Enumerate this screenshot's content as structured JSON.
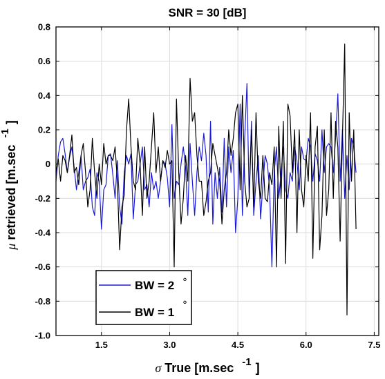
{
  "chart_data": {
    "type": "line",
    "title": "SNR = 30 [dB]",
    "xlabel": {
      "symbol": "σ",
      "text": " True [m.sec",
      "sup": "-1",
      "close": "]"
    },
    "ylabel": {
      "symbol": "μ",
      "text": " retrieved [m.sec",
      "sup": "-1",
      "close": "]"
    },
    "xlim": [
      0.5,
      7.6
    ],
    "ylim": [
      -1.0,
      0.8
    ],
    "xticks": [
      1.5,
      3.0,
      4.5,
      6.0,
      7.5
    ],
    "xtick_labels": [
      "1.5",
      "3.0",
      "4.5",
      "6.0",
      "7.5"
    ],
    "yticks": [
      -1.0,
      -0.8,
      -0.6,
      -0.4,
      -0.2,
      0,
      0.2,
      0.4,
      0.6,
      0.8
    ],
    "ytick_labels": [
      "-1.0",
      "-0.8",
      "-0.6",
      "-0.4",
      "-0.2",
      "0",
      "0.2",
      "0.4",
      "0.6",
      "0.8"
    ],
    "legend": {
      "placement": "bottom-left",
      "degree_symbol": "°"
    },
    "series": [
      {
        "name": "BW = 2",
        "color": "#1a1ad6",
        "x0": 0.5,
        "dx": 0.05,
        "values": [
          -0.1,
          0.05,
          0.13,
          0.15,
          0.06,
          -0.05,
          0.04,
          0.1,
          -0.02,
          -0.15,
          -0.05,
          0.05,
          -0.15,
          -0.1,
          -0.08,
          -0.03,
          -0.25,
          -0.3,
          -0.05,
          -0.1,
          -0.38,
          -0.15,
          -0.12,
          0.05,
          0.06,
          -0.06,
          -0.2,
          0.02,
          -0.25,
          -0.35,
          -0.05,
          0.05,
          0,
          0.06,
          -0.32,
          -0.12,
          -0.1,
          0,
          0.1,
          -0.15,
          -0.12,
          -0.25,
          -0.05,
          -0.15,
          -0.1,
          -0.2,
          -0.1,
          0.02,
          0,
          -0.08,
          -0.25,
          0.23,
          -0.2,
          -0.1,
          -0.12,
          0,
          0.1,
          -0.02,
          -0.3,
          0.12,
          -0.1,
          -0.3,
          -0.05,
          0.1,
          0.02,
          0.18,
          0.05,
          -0.28,
          0.25,
          -0.35,
          -0.05,
          -0.2,
          -0.02,
          -0.28,
          0.15,
          -0.25,
          0.1,
          -0.05,
          0.08,
          -0.4,
          -0.2,
          0.35,
          -0.3,
          0.15,
          0.47,
          -0.2,
          0.25,
          -0.3,
          -0.1,
          0.05,
          -0.32,
          -0.12,
          0.05,
          0,
          -0.15,
          -0.6,
          -0.05,
          0.1,
          -0.2,
          -0.05,
          0.1,
          -0.15,
          -0.2,
          -0.05,
          -0.1,
          0.1,
          0.02,
          -0.15,
          0.1,
          0.03,
          0.02,
          0.15,
          0.1,
          -0.1,
          0.06,
          0.02,
          -0.1,
          0.2,
          -0.05,
          0.1,
          0.12,
          0.1,
          -0.05,
          0.15,
          0.41,
          -0.1,
          0.2,
          -0.2,
          0.05,
          -0.15,
          0.15,
          0.1,
          -0.05
        ]
      },
      {
        "name": "BW = 1",
        "color": "#000000",
        "x0": 0.5,
        "dx": 0.05,
        "values": [
          -0.05,
          0.03,
          -0.1,
          0.05,
          0.02,
          -0.05,
          0.05,
          0.17,
          -0.05,
          -0.02,
          -0.12,
          0.05,
          0.12,
          -0.05,
          -0.25,
          -0.15,
          0.15,
          -0.05,
          -0.2,
          0,
          -0.12,
          0.12,
          0,
          0.05,
          0.05,
          0.02,
          0.1,
          -0.1,
          -0.5,
          -0.25,
          -0.18,
          0.2,
          0.38,
          0.1,
          -0.1,
          -0.15,
          0.15,
          0,
          -0.3,
          0.1,
          -0.2,
          -0.1,
          0.1,
          0.3,
          -0.05,
          0.1,
          -0.1,
          0.02,
          -0.02,
          0.08,
          0,
          0.02,
          -0.6,
          0.38,
          -0.05,
          -0.35,
          -0.2,
          0.05,
          -0.1,
          0.5,
          0.25,
          0.3,
          0.05,
          -0.1,
          -0.1,
          -0.3,
          -0.22,
          -0.1,
          -0.05,
          0.12,
          0.05,
          -0.02,
          -0.1,
          -0.35,
          -0.15,
          -0.05,
          0.2,
          0.05,
          0.15,
          0.3,
          0.35,
          -0.15,
          0.4,
          -0.1,
          -0.25,
          -0.2,
          0.2,
          -0.25,
          0.3,
          -0.1,
          -0.2,
          0.05,
          -0.2,
          -0.22,
          -0.05,
          -0.12,
          0.1,
          -0.6,
          0.22,
          -0.2,
          0.25,
          -0.58,
          0.35,
          0.28,
          -0.05,
          0.2,
          -0.4,
          0.2,
          -0.15,
          -0.25,
          0.05,
          -0.1,
          0.3,
          -0.55,
          0.1,
          0.22,
          -0.5,
          -0.3,
          0.2,
          -0.3,
          -0.15,
          0.3,
          -0.2,
          0.25,
          0.1,
          -0.45,
          0.15,
          0.7,
          -0.88,
          0.3,
          -0.1,
          0.2,
          -0.38
        ]
      }
    ]
  }
}
